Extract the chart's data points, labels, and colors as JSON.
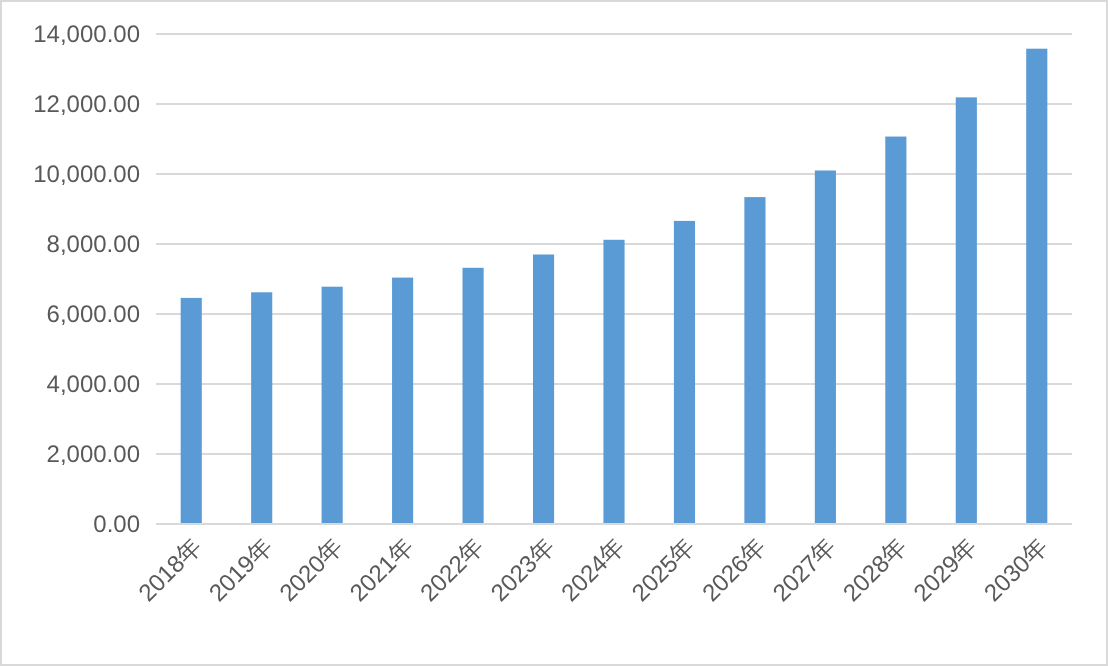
{
  "chart_data": {
    "type": "bar",
    "categories": [
      "2018年",
      "2019年",
      "2020年",
      "2021年",
      "2022年",
      "2023年",
      "2024年",
      "2025年",
      "2026年",
      "2027年",
      "2028年",
      "2029年",
      "2030年"
    ],
    "values": [
      6460,
      6620,
      6780,
      7040,
      7320,
      7700,
      8120,
      8660,
      9340,
      10100,
      11070,
      12190,
      13580
    ],
    "color": "#5b9bd5",
    "ylim": [
      0,
      14000
    ],
    "yticks": [
      {
        "value": 0,
        "label": "0.00"
      },
      {
        "value": 2000,
        "label": "2,000.00"
      },
      {
        "value": 4000,
        "label": "4,000.00"
      },
      {
        "value": 6000,
        "label": "6,000.00"
      },
      {
        "value": 8000,
        "label": "8,000.00"
      },
      {
        "value": 10000,
        "label": "10,000.00"
      },
      {
        "value": 12000,
        "label": "12,000.00"
      },
      {
        "value": 14000,
        "label": "14,000.00"
      }
    ],
    "grid": "y"
  }
}
